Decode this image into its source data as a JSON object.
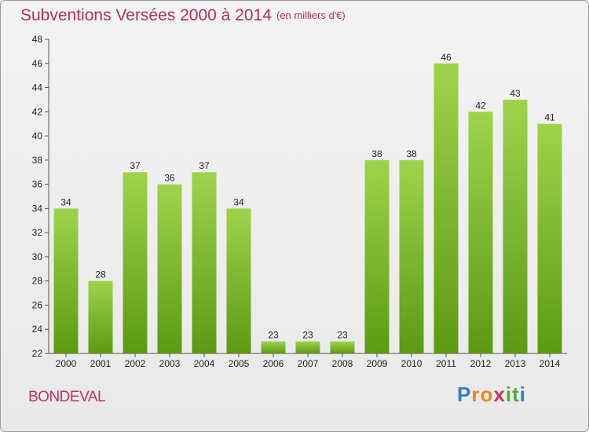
{
  "title": "Subventions Versées 2000 à 2014",
  "subtitle": "(en milliers d'€)",
  "place": "BONDEVAL",
  "logo": {
    "letters": [
      "P",
      "r",
      "o",
      "x",
      "i",
      "t",
      "i"
    ],
    "colors": [
      "#2f80c8",
      "#e08a1e",
      "#e08a1e",
      "#d03060",
      "#58a83a",
      "#58a83a",
      "#2f80c8"
    ]
  },
  "colors": {
    "bar_top": "#9ed44c",
    "bar_bottom": "#5c9a12",
    "title": "#b0305a"
  },
  "chart_data": {
    "type": "bar",
    "categories": [
      "2000",
      "2001",
      "2002",
      "2003",
      "2004",
      "2005",
      "2006",
      "2007",
      "2008",
      "2009",
      "2010",
      "2011",
      "2012",
      "2013",
      "2014"
    ],
    "values": [
      34,
      28,
      37,
      36,
      37,
      34,
      23,
      23,
      23,
      38,
      38,
      46,
      42,
      43,
      41
    ],
    "ylim": [
      22,
      48
    ],
    "yticks": [
      22,
      24,
      26,
      28,
      30,
      32,
      34,
      36,
      38,
      40,
      42,
      44,
      46,
      48
    ],
    "grid": false
  }
}
